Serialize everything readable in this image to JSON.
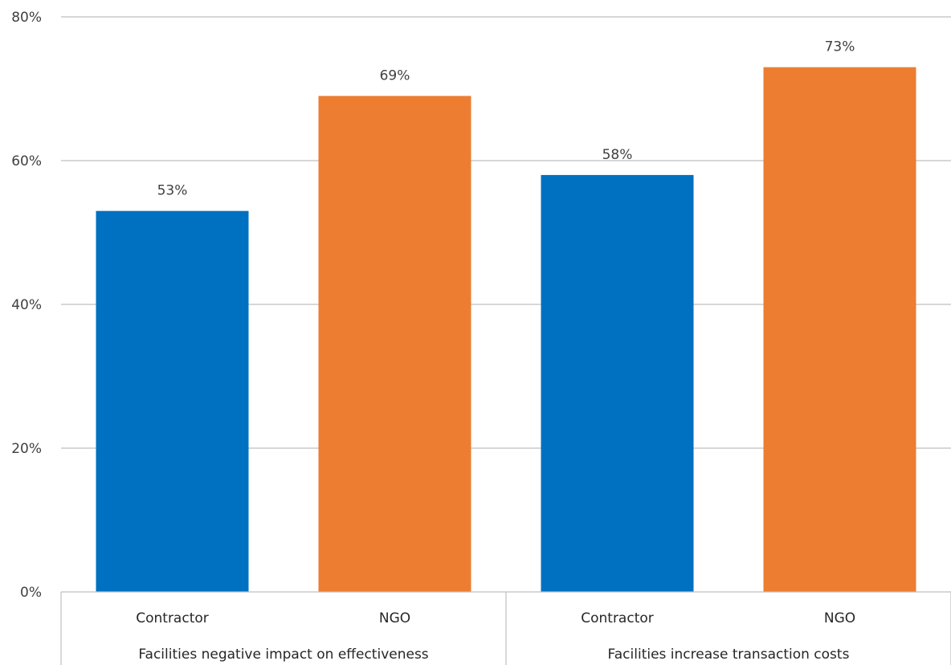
{
  "chart_data": {
    "type": "bar",
    "ylim": [
      0,
      80
    ],
    "y_ticks": [
      "0%",
      "20%",
      "40%",
      "60%",
      "80%"
    ],
    "y_tick_values": [
      0,
      20,
      40,
      60,
      80
    ],
    "grid": true,
    "bars": [
      {
        "category": "Contractor",
        "group": "Facilities negative impact on effectiveness",
        "value": 53,
        "label": "53%",
        "color": "#0070C0"
      },
      {
        "category": "NGO",
        "group": "Facilities negative impact on effectiveness",
        "value": 69,
        "label": "69%",
        "color": "#ED7D31"
      },
      {
        "category": "Contractor",
        "group": "Facilities increase transaction costs",
        "value": 58,
        "label": "58%",
        "color": "#0070C0"
      },
      {
        "category": "NGO",
        "group": "Facilities increase transaction costs",
        "value": 73,
        "label": "73%",
        "color": "#ED7D31"
      }
    ],
    "groups": [
      "Facilities negative impact on effectiveness",
      "Facilities increase transaction costs"
    ]
  }
}
